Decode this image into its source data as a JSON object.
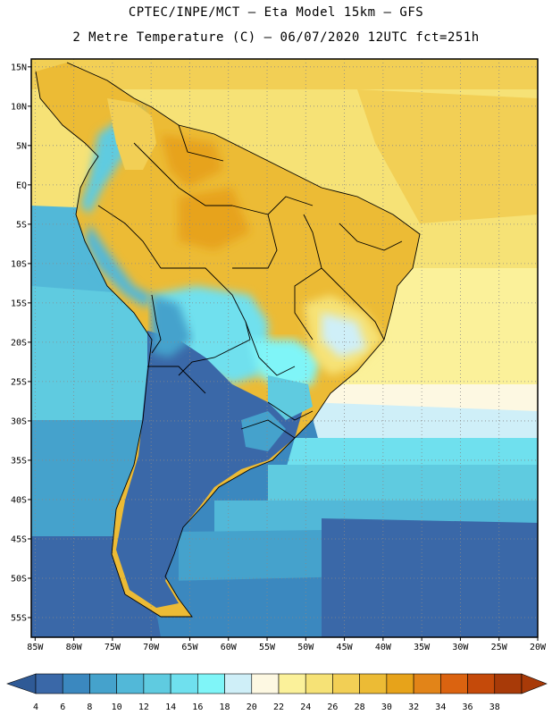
{
  "header": {
    "title_line1": "CPTEC/INPE/MCT –  Eta Model 15km – GFS",
    "title_line2": "2 Metre Temperature (C) – 06/07/2020 12UTC fct=251h"
  },
  "map": {
    "lat_labels": [
      "15N",
      "10N",
      "5N",
      "EQ",
      "5S",
      "10S",
      "15S",
      "20S",
      "25S",
      "30S",
      "35S",
      "40S",
      "45S",
      "50S",
      "55S"
    ],
    "lon_labels": [
      "85W",
      "80W",
      "75W",
      "70W",
      "65W",
      "60W",
      "55W",
      "50W",
      "45W",
      "40W",
      "35W",
      "30W",
      "25W",
      "20W"
    ],
    "grid": "dotted",
    "extent": {
      "lon": [
        -85.5,
        -20
      ],
      "lat": [
        -57.5,
        16
      ]
    }
  },
  "colorbar": {
    "ticks": [
      "4",
      "6",
      "8",
      "10",
      "12",
      "14",
      "16",
      "18",
      "20",
      "22",
      "24",
      "26",
      "28",
      "30",
      "32",
      "34",
      "36",
      "38"
    ],
    "colors": [
      "#3a68a8",
      "#3b88bf",
      "#45a2cc",
      "#52b8d8",
      "#5fcbe0",
      "#6fe0ee",
      "#7ff5f8",
      "#cfeff8",
      "#fdf8e2",
      "#fbf19a",
      "#f6e276",
      "#f2cf55",
      "#ecbb35",
      "#e7a31a",
      "#e28418",
      "#db6310",
      "#c54a0a",
      "#a83a08"
    ],
    "min_color": "#2f5a96",
    "max_color": "#a83a08"
  }
}
